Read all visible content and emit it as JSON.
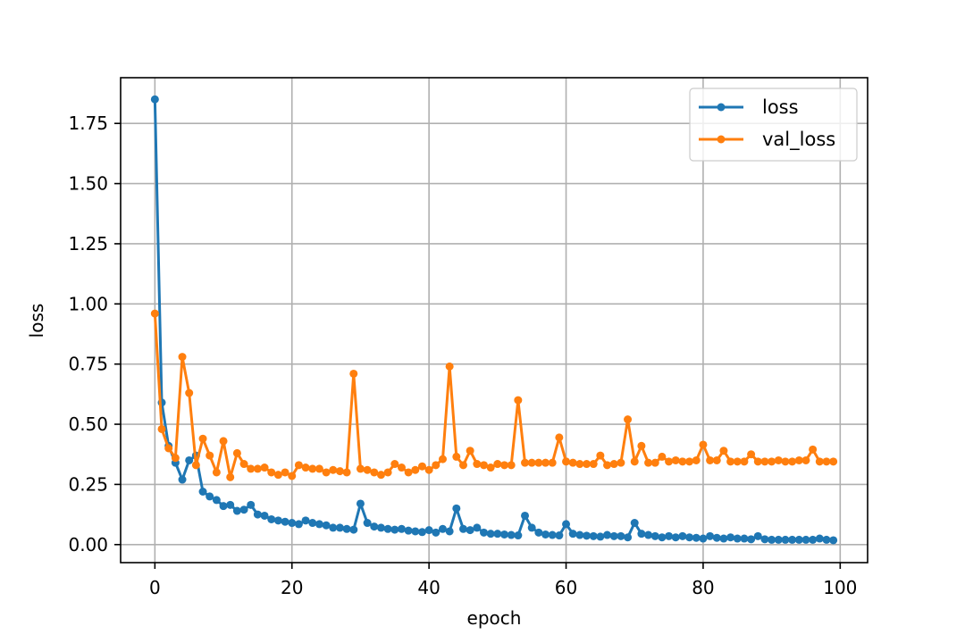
{
  "chart_data": {
    "type": "line",
    "title": "",
    "xlabel": "epoch",
    "ylabel": "loss",
    "xlim": [
      -5,
      104
    ],
    "ylim": [
      -0.075,
      1.94
    ],
    "xticks": [
      0,
      20,
      40,
      60,
      80,
      100
    ],
    "yticks": [
      0.0,
      0.25,
      0.5,
      0.75,
      1.0,
      1.25,
      1.5,
      1.75
    ],
    "xtick_labels": [
      "0",
      "20",
      "40",
      "60",
      "80",
      "100"
    ],
    "ytick_labels": [
      "0.00",
      "0.25",
      "0.50",
      "0.75",
      "1.00",
      "1.25",
      "1.50",
      "1.75"
    ],
    "grid": true,
    "legend_position": "top-right",
    "series": [
      {
        "name": "loss",
        "color": "#1f77b4",
        "values": [
          1.85,
          0.59,
          0.41,
          0.34,
          0.27,
          0.35,
          0.37,
          0.22,
          0.2,
          0.185,
          0.16,
          0.165,
          0.14,
          0.145,
          0.165,
          0.125,
          0.12,
          0.105,
          0.1,
          0.095,
          0.09,
          0.085,
          0.1,
          0.09,
          0.085,
          0.08,
          0.07,
          0.07,
          0.065,
          0.062,
          0.17,
          0.09,
          0.075,
          0.07,
          0.065,
          0.062,
          0.065,
          0.058,
          0.055,
          0.052,
          0.06,
          0.05,
          0.065,
          0.055,
          0.15,
          0.065,
          0.06,
          0.07,
          0.05,
          0.045,
          0.045,
          0.042,
          0.04,
          0.038,
          0.12,
          0.07,
          0.05,
          0.042,
          0.04,
          0.038,
          0.085,
          0.045,
          0.04,
          0.037,
          0.035,
          0.033,
          0.04,
          0.035,
          0.035,
          0.03,
          0.09,
          0.045,
          0.04,
          0.035,
          0.03,
          0.035,
          0.03,
          0.035,
          0.03,
          0.028,
          0.025,
          0.035,
          0.028,
          0.025,
          0.03,
          0.025,
          0.025,
          0.022,
          0.035,
          0.022,
          0.02,
          0.02,
          0.02,
          0.02,
          0.02,
          0.02,
          0.02,
          0.025,
          0.02,
          0.018
        ]
      },
      {
        "name": "val_loss",
        "color": "#ff7f0e",
        "values": [
          0.96,
          0.48,
          0.4,
          0.36,
          0.78,
          0.63,
          0.33,
          0.44,
          0.37,
          0.3,
          0.43,
          0.28,
          0.38,
          0.335,
          0.315,
          0.315,
          0.32,
          0.3,
          0.29,
          0.3,
          0.285,
          0.33,
          0.32,
          0.315,
          0.315,
          0.3,
          0.31,
          0.305,
          0.3,
          0.71,
          0.315,
          0.31,
          0.3,
          0.29,
          0.3,
          0.335,
          0.32,
          0.3,
          0.31,
          0.325,
          0.31,
          0.33,
          0.355,
          0.74,
          0.365,
          0.33,
          0.39,
          0.335,
          0.33,
          0.32,
          0.335,
          0.33,
          0.33,
          0.6,
          0.34,
          0.34,
          0.34,
          0.34,
          0.34,
          0.445,
          0.345,
          0.34,
          0.335,
          0.335,
          0.335,
          0.37,
          0.33,
          0.335,
          0.34,
          0.52,
          0.345,
          0.41,
          0.34,
          0.34,
          0.365,
          0.345,
          0.35,
          0.345,
          0.345,
          0.35,
          0.415,
          0.35,
          0.35,
          0.39,
          0.345,
          0.345,
          0.345,
          0.375,
          0.345,
          0.345,
          0.345,
          0.35,
          0.345,
          0.345,
          0.35,
          0.35,
          0.395,
          0.345,
          0.345,
          0.345
        ]
      }
    ]
  }
}
